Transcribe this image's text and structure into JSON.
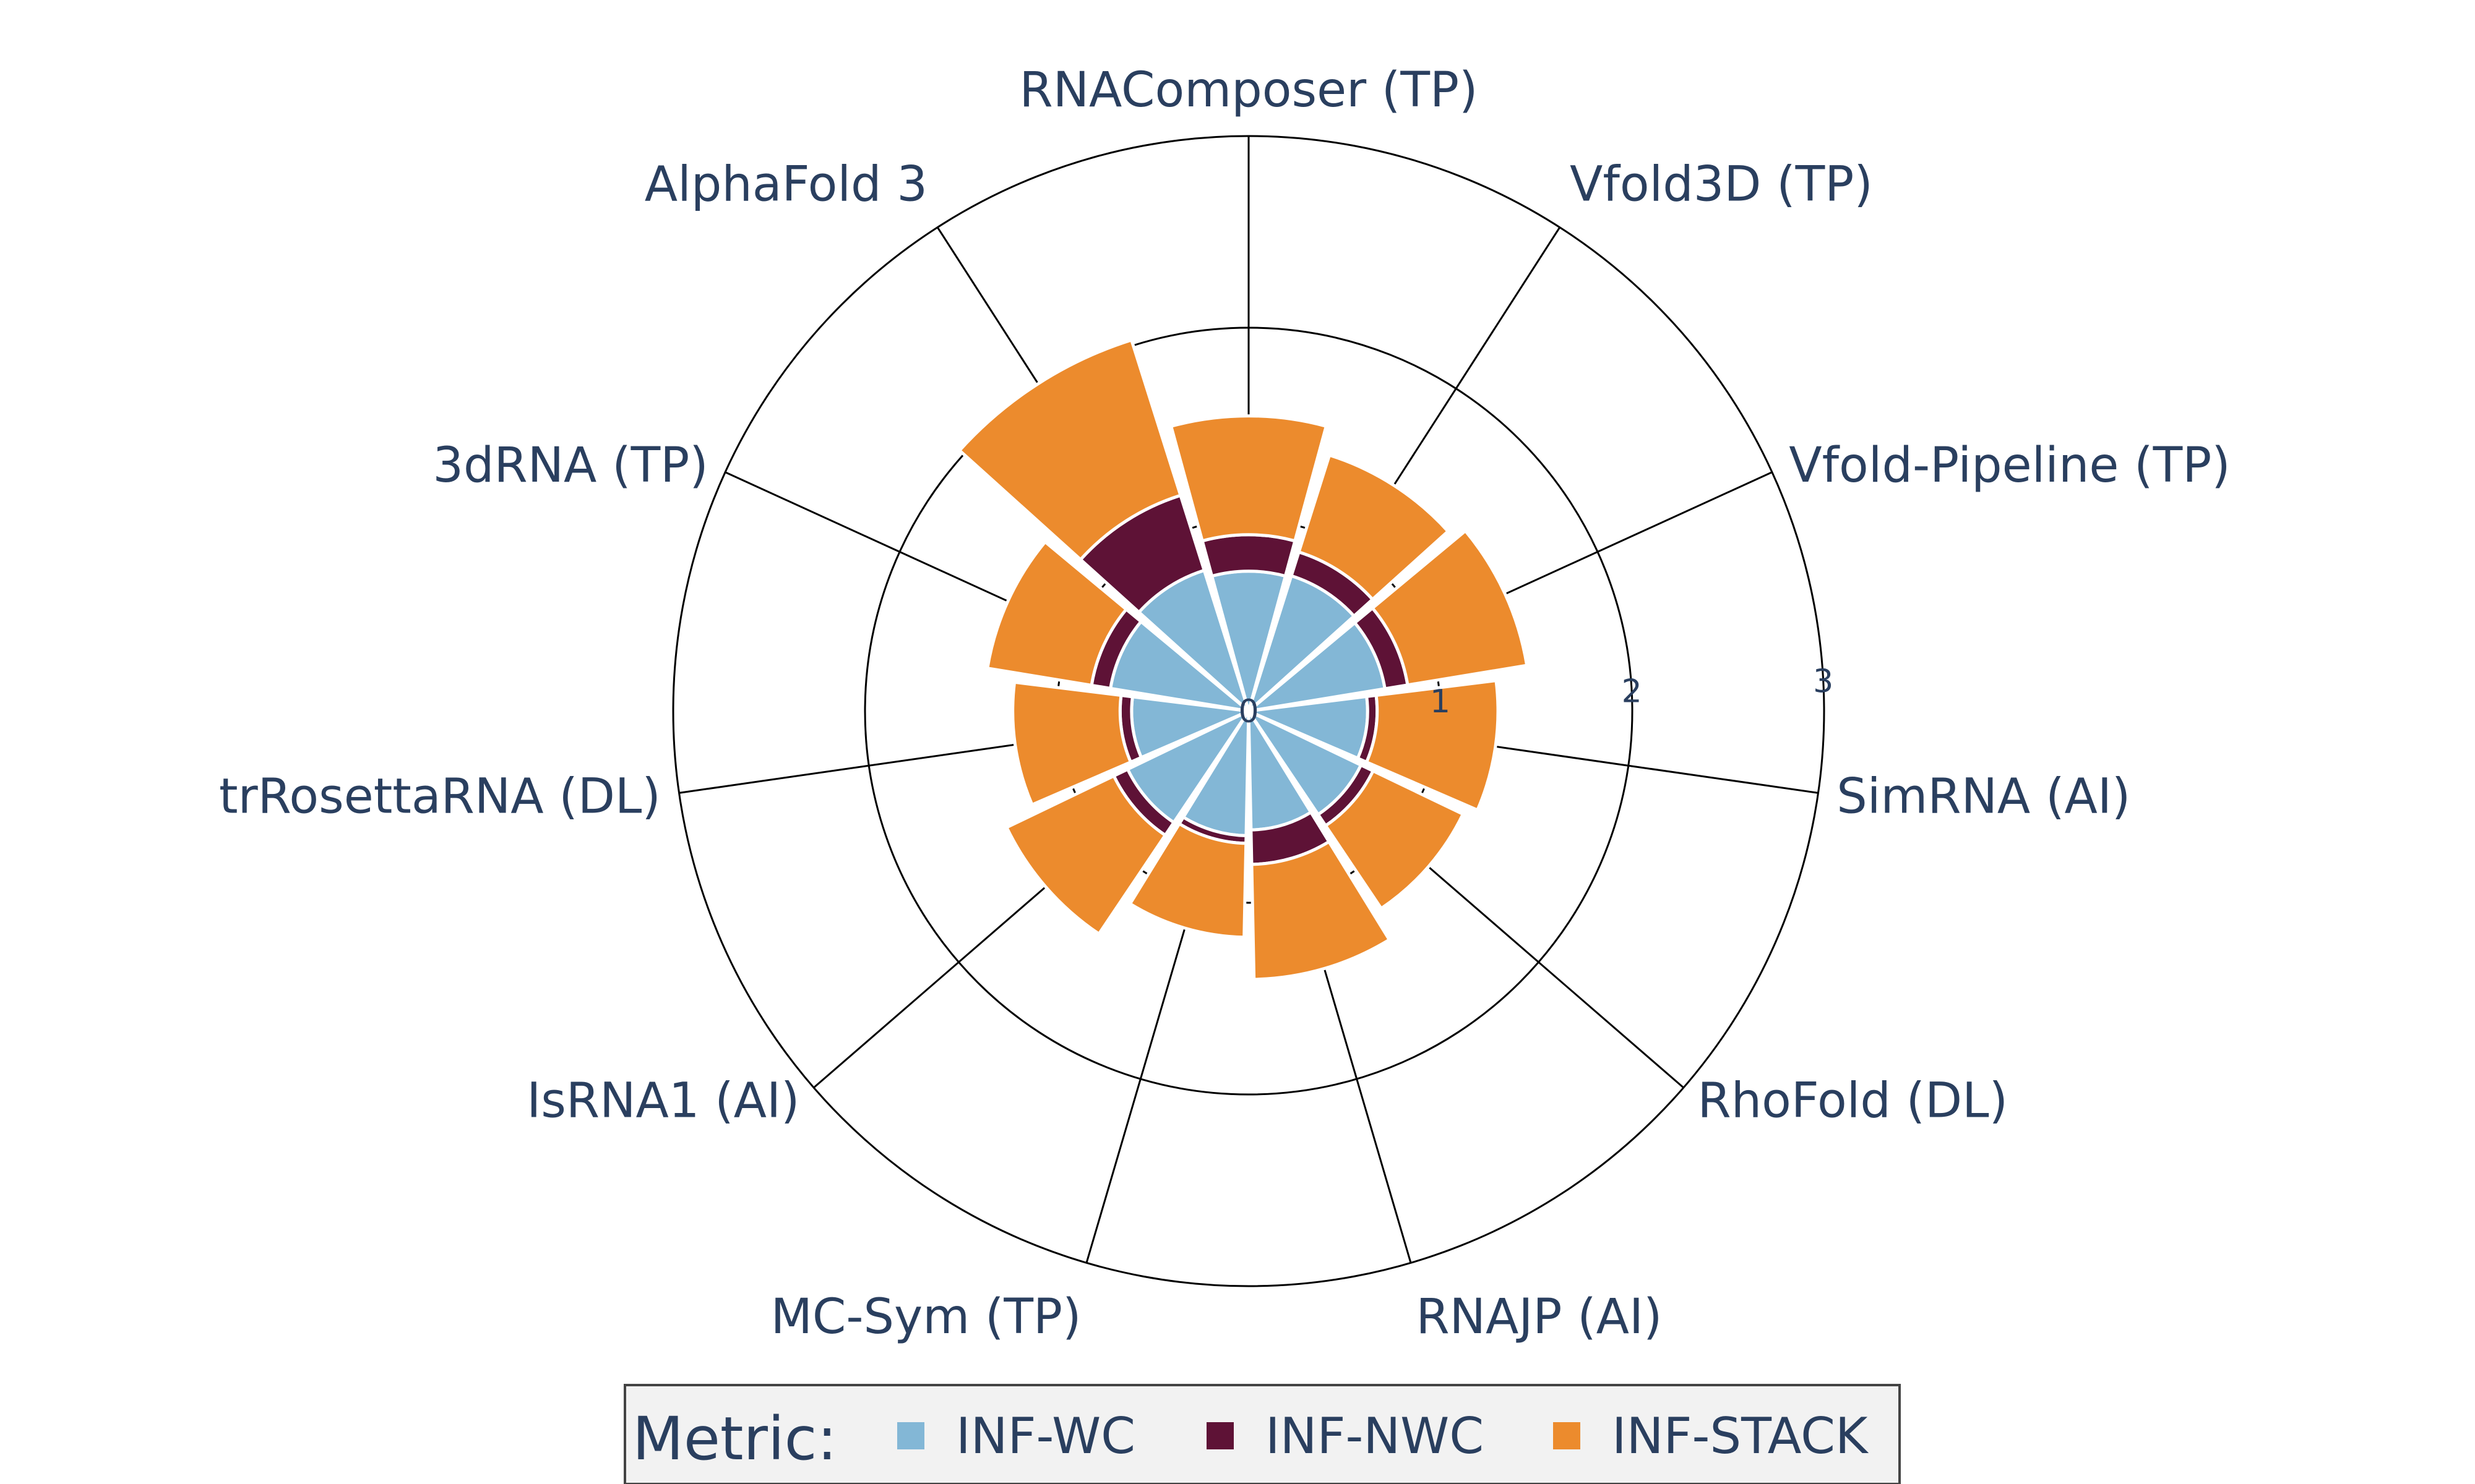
{
  "chart_data": {
    "type": "barpolar",
    "categories": [
      "RNAComposer (TP)",
      "Vfold3D (TP)",
      "Vfold-Pipeline (TP)",
      "SimRNA (AI)",
      "RhoFold (DL)",
      "RNAJP (AI)",
      "MC-Sym (TP)",
      "IsRNA1 (AI)",
      "trRosettaRNA (DL)",
      "3dRNA (TP)",
      "AlphaFold 3"
    ],
    "series": [
      {
        "name": "INF-WC",
        "color": "#83b7d6",
        "values": [
          0.73,
          0.74,
          0.72,
          0.62,
          0.65,
          0.62,
          0.65,
          0.7,
          0.61,
          0.73,
          0.77
        ]
      },
      {
        "name": "INF-NWC",
        "color": "#5e1236",
        "values": [
          0.19,
          0.13,
          0.12,
          0.05,
          0.07,
          0.18,
          0.04,
          0.08,
          0.06,
          0.1,
          0.41
        ]
      },
      {
        "name": "INF-STACK",
        "color": "#ec8b2d",
        "values": [
          0.62,
          0.53,
          0.63,
          0.63,
          0.52,
          0.6,
          0.49,
          0.62,
          0.56,
          0.55,
          0.85
        ]
      }
    ],
    "radial_axis": {
      "range": [
        0,
        3
      ],
      "tick_labels": [
        "0",
        "1",
        "2",
        "3"
      ]
    },
    "legend": {
      "title": "Metric:",
      "placement": "bottom-center",
      "orientation": "horizontal"
    },
    "grid": true
  }
}
